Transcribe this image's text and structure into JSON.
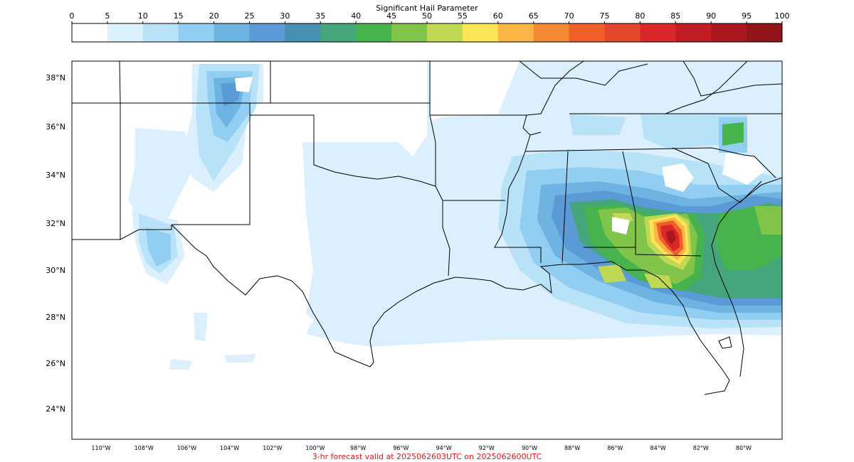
{
  "colorbar": {
    "title": "Significant Hail Parameter",
    "ticks": [
      "0",
      "5",
      "10",
      "15",
      "20",
      "25",
      "30",
      "35",
      "40",
      "45",
      "50",
      "55",
      "60",
      "65",
      "70",
      "75",
      "80",
      "85",
      "90",
      "95",
      "100"
    ],
    "colors": [
      "#ffffff",
      "#dbf0fc",
      "#b8e2f7",
      "#92cef1",
      "#6eb4e2",
      "#5a9ad6",
      "#4790b0",
      "#44a67a",
      "#47b34c",
      "#80c449",
      "#bfd955",
      "#fbe557",
      "#fbb546",
      "#f48a33",
      "#ef5f28",
      "#e44629",
      "#da2729",
      "#c11d24",
      "#a9171f",
      "#911419"
    ]
  },
  "map": {
    "lat_ticks": [
      "38°N",
      "36°N",
      "34°N",
      "32°N",
      "30°N",
      "28°N",
      "26°N",
      "24°N"
    ],
    "lon_ticks": [
      "110°W",
      "108°W",
      "106°W",
      "104°W",
      "102°W",
      "100°W",
      "98°W",
      "96°W",
      "94°W",
      "92°W",
      "90°W",
      "88°W",
      "86°W",
      "84°W",
      "82°W",
      "80°W"
    ],
    "extent": {
      "lon_min": -111.3,
      "lon_max": -78.2,
      "lat_min": 22.7,
      "lat_max": 38.7
    }
  },
  "caption": {
    "text": "3-hr forecast valid at 2025062603UTC on 2025062600UTC",
    "color": "#e8141c"
  }
}
